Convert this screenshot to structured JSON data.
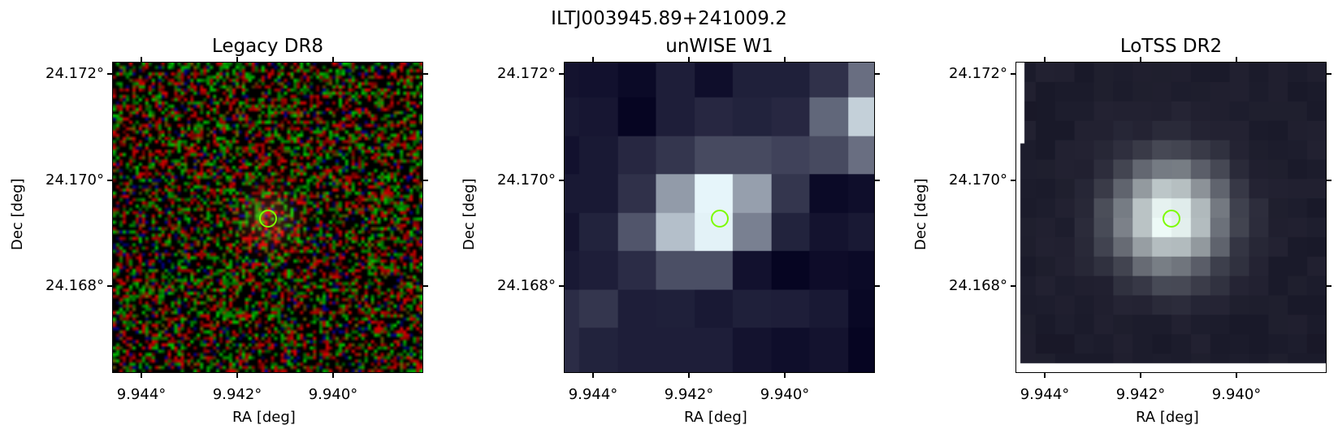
{
  "figure": {
    "title": "ILTJ003945.89+241009.2"
  },
  "panels": [
    {
      "title": "Legacy DR8",
      "image": "rgb-noise-faint-source",
      "xlabel": "RA [deg]",
      "ylabel": "Dec [deg]",
      "xticks": [
        "9.944°",
        "9.942°",
        "9.940°"
      ],
      "yticks": [
        "24.172°",
        "24.170°",
        "24.168°"
      ],
      "marker_color": "#7cfc00"
    },
    {
      "title": "unWISE W1",
      "image": "grayscale-coarse-pixels",
      "xlabel": "RA [deg]",
      "ylabel": "Dec [deg]",
      "xticks": [
        "9.944°",
        "9.942°",
        "9.940°"
      ],
      "yticks": [
        "24.172°",
        "24.170°",
        "24.168°"
      ],
      "marker_color": "#7cfc00"
    },
    {
      "title": "LoTSS DR2",
      "image": "grayscale-radio-source",
      "xlabel": "RA [deg]",
      "ylabel": "Dec [deg]",
      "xticks": [
        "9.944°",
        "9.942°",
        "9.940°"
      ],
      "yticks": [
        "24.172°",
        "24.170°",
        "24.168°"
      ],
      "marker_color": "#7cfc00"
    }
  ]
}
